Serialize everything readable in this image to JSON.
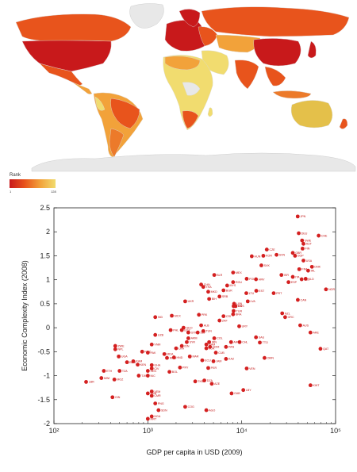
{
  "legend": {
    "title": "Rank",
    "min": "1",
    "max": "128"
  },
  "colors": {
    "marker": "#d42020",
    "label": "#c01010",
    "map_ocean": "#ffffff",
    "map_land_missing": "#e8e8e8"
  },
  "chart_data": {
    "type": "scatter",
    "xlabel": "GDP per capita in USD (2009)",
    "ylabel": "Economic Complexity Index (2008)",
    "xscale": "log",
    "xlim": [
      100,
      100000
    ],
    "ylim": [
      -2,
      2.5
    ],
    "x_tick_labels": [
      "10²",
      "10³",
      "10⁴",
      "10⁵"
    ],
    "y_ticks": [
      -2,
      -1.5,
      -1,
      -0.5,
      0,
      0.5,
      1,
      1.5,
      2,
      2.5
    ],
    "y_tick_labels": [
      "-2",
      "-1.5",
      "-1",
      "-0.5",
      "0",
      "0.5",
      "1",
      "1.5",
      "2",
      "2.5"
    ],
    "grid": false,
    "points": [
      {
        "label": "JPN",
        "x": 39500,
        "y": 2.32
      },
      {
        "label": "DEU",
        "x": 40500,
        "y": 1.97
      },
      {
        "label": "CHE",
        "x": 66000,
        "y": 1.92
      },
      {
        "label": "SWE",
        "x": 44000,
        "y": 1.82
      },
      {
        "label": "AUT",
        "x": 45500,
        "y": 1.75
      },
      {
        "label": "FIN",
        "x": 44500,
        "y": 1.65
      },
      {
        "label": "GBR",
        "x": 35000,
        "y": 1.56
      },
      {
        "label": "SGP",
        "x": 37000,
        "y": 1.5
      },
      {
        "label": "USA",
        "x": 45500,
        "y": 1.4
      },
      {
        "label": "DNK",
        "x": 56000,
        "y": 1.27
      },
      {
        "label": "CZE",
        "x": 18500,
        "y": 1.63
      },
      {
        "label": "KOR",
        "x": 17000,
        "y": 1.5
      },
      {
        "label": "SVN",
        "x": 23500,
        "y": 1.52
      },
      {
        "label": "HUN",
        "x": 12800,
        "y": 1.49
      },
      {
        "label": "FRA",
        "x": 41000,
        "y": 1.22
      },
      {
        "label": "ISR",
        "x": 26500,
        "y": 1.1
      },
      {
        "label": "IRL",
        "x": 51000,
        "y": 1.19
      },
      {
        "label": "NLD",
        "x": 48000,
        "y": 1.02
      },
      {
        "label": "BEL",
        "x": 43500,
        "y": 1.01
      },
      {
        "label": "ITA",
        "x": 35000,
        "y": 1.06
      },
      {
        "label": "ESP",
        "x": 31500,
        "y": 0.95
      },
      {
        "label": "CAN",
        "x": 39600,
        "y": 0.58
      },
      {
        "label": "NOR",
        "x": 79000,
        "y": 0.8
      },
      {
        "label": "MEX",
        "x": 8100,
        "y": 1.15
      },
      {
        "label": "BLR",
        "x": 5100,
        "y": 1.1
      },
      {
        "label": "POL",
        "x": 11300,
        "y": 1.02
      },
      {
        "label": "HRV",
        "x": 14200,
        "y": 1.01
      },
      {
        "label": "SVK",
        "x": 16200,
        "y": 1.3
      },
      {
        "label": "EST",
        "x": 14300,
        "y": 0.77
      },
      {
        "label": "LTU",
        "x": 11200,
        "y": 0.72
      },
      {
        "label": "PRT",
        "x": 21900,
        "y": 0.72
      },
      {
        "label": "NZL",
        "x": 27000,
        "y": 0.3
      },
      {
        "label": "GRC",
        "x": 29000,
        "y": 0.22
      },
      {
        "label": "AUS",
        "x": 42000,
        "y": 0.05
      },
      {
        "label": "ARE",
        "x": 54000,
        "y": -0.1
      },
      {
        "label": "QAT",
        "x": 69000,
        "y": -0.44
      },
      {
        "label": "KWT",
        "x": 54000,
        "y": -1.2
      },
      {
        "label": "SAU",
        "x": 14200,
        "y": -0.2
      },
      {
        "label": "TTO",
        "x": 15600,
        "y": -0.31
      },
      {
        "label": "OMN",
        "x": 17500,
        "y": -0.63
      },
      {
        "label": "VEN",
        "x": 11300,
        "y": -0.85
      },
      {
        "label": "LBY",
        "x": 10400,
        "y": -1.3
      },
      {
        "label": "GAB",
        "x": 7800,
        "y": -1.37
      },
      {
        "label": "AZE",
        "x": 4800,
        "y": -1.17
      },
      {
        "label": "TKM",
        "x": 3200,
        "y": -1.12
      },
      {
        "label": "DZA",
        "x": 4000,
        "y": -1.1
      },
      {
        "label": "AGO",
        "x": 4200,
        "y": -1.72
      },
      {
        "label": "COG",
        "x": 2500,
        "y": -1.65
      },
      {
        "label": "NGA",
        "x": 1100,
        "y": -1.85
      },
      {
        "label": "GIN",
        "x": 420,
        "y": -1.45
      },
      {
        "label": "SDN",
        "x": 1300,
        "y": -1.72
      },
      {
        "label": "PNG",
        "x": 1200,
        "y": -1.58
      },
      {
        "label": "CMR",
        "x": 1100,
        "y": -1.42
      },
      {
        "label": "ZMB",
        "x": 1000,
        "y": -1.37
      },
      {
        "label": "YEM",
        "x": 1100,
        "y": -1.33
      },
      {
        "label": "LBR",
        "x": 220,
        "y": -1.13
      },
      {
        "label": "ETH",
        "x": 340,
        "y": -0.9
      },
      {
        "label": "MOZ",
        "x": 440,
        "y": -1.08
      },
      {
        "label": "MWI",
        "x": 320,
        "y": -1.05
      },
      {
        "label": "TZA",
        "x": 500,
        "y": -0.9
      },
      {
        "label": "SEN",
        "x": 1000,
        "y": -0.9
      },
      {
        "label": "CIV",
        "x": 1100,
        "y": -0.85
      },
      {
        "label": "BOL",
        "x": 1700,
        "y": -0.92
      },
      {
        "label": "NIC",
        "x": 1000,
        "y": -1.0
      },
      {
        "label": "TJK",
        "x": 800,
        "y": -1.0
      },
      {
        "label": "BGD",
        "x": 600,
        "y": -0.72
      },
      {
        "label": "KEN",
        "x": 780,
        "y": -0.77
      },
      {
        "label": "GHA",
        "x": 1100,
        "y": -0.78
      },
      {
        "label": "UGA",
        "x": 490,
        "y": -0.6
      },
      {
        "label": "ZWE",
        "x": 450,
        "y": -0.38
      },
      {
        "label": "KGZ",
        "x": 870,
        "y": -0.5
      },
      {
        "label": "VNM",
        "x": 1100,
        "y": -0.35
      },
      {
        "label": "PAK",
        "x": 1000,
        "y": -0.52
      },
      {
        "label": "NPL",
        "x": 450,
        "y": -0.45
      },
      {
        "label": "KHM",
        "x": 700,
        "y": -0.7
      },
      {
        "label": "MNG",
        "x": 1600,
        "y": -0.63
      },
      {
        "label": "HND",
        "x": 1900,
        "y": -0.62
      },
      {
        "label": "LKA",
        "x": 2000,
        "y": -0.43
      },
      {
        "label": "IDN",
        "x": 2300,
        "y": -0.38
      },
      {
        "label": "PHL",
        "x": 1750,
        "y": -0.05
      },
      {
        "label": "IND",
        "x": 1200,
        "y": 0.22
      },
      {
        "label": "MDA",
        "x": 1500,
        "y": -0.55
      },
      {
        "label": "UKR",
        "x": 2500,
        "y": 0.55
      },
      {
        "label": "MCX",
        "x": 1800,
        "y": 0.25
      },
      {
        "label": "GTM",
        "x": 2700,
        "y": -0.1
      },
      {
        "label": "SLV",
        "x": 3400,
        "y": -0.1
      },
      {
        "label": "EGY",
        "x": 2300,
        "y": -0.05
      },
      {
        "label": "SYR",
        "x": 2600,
        "y": -0.3
      },
      {
        "label": "MAR",
        "x": 2800,
        "y": -0.6
      },
      {
        "label": "JOR",
        "x": 4200,
        "y": -0.43
      },
      {
        "label": "TUN",
        "x": 3900,
        "y": -0.07
      },
      {
        "label": "ALB",
        "x": 3700,
        "y": 0.05
      },
      {
        "label": "GEO",
        "x": 2400,
        "y": 0.0
      },
      {
        "label": "ARM",
        "x": 2700,
        "y": -0.22
      },
      {
        "label": "ECU",
        "x": 3800,
        "y": -0.68
      },
      {
        "label": "PRY",
        "x": 2200,
        "y": -0.83
      },
      {
        "label": "PER",
        "x": 4400,
        "y": -0.84
      },
      {
        "label": "CHL",
        "x": 9500,
        "y": -0.3
      },
      {
        "label": "IRN",
        "x": 4500,
        "y": -0.3
      },
      {
        "label": "KAZ",
        "x": 6800,
        "y": -0.65
      },
      {
        "label": "CUB",
        "x": 5300,
        "y": -0.52
      },
      {
        "label": "JAM",
        "x": 5000,
        "y": -0.7
      },
      {
        "label": "PAN",
        "x": 6800,
        "y": -0.4
      },
      {
        "label": "DOM",
        "x": 4600,
        "y": -0.4
      },
      {
        "label": "CRI",
        "x": 6400,
        "y": 0.24
      },
      {
        "label": "URY",
        "x": 9400,
        "y": 0.03
      },
      {
        "label": "ZAF",
        "x": 5800,
        "y": 0.15
      },
      {
        "label": "BRA",
        "x": 8100,
        "y": 0.28
      },
      {
        "label": "THA",
        "x": 3900,
        "y": 0.85
      },
      {
        "label": "CHN",
        "x": 3700,
        "y": 0.9
      },
      {
        "label": "TUR",
        "x": 8200,
        "y": 0.45
      },
      {
        "label": "ARG",
        "x": 7700,
        "y": -0.3
      },
      {
        "label": "COL",
        "x": 5100,
        "y": -0.22
      },
      {
        "label": "BGR",
        "x": 6400,
        "y": 0.78
      },
      {
        "label": "ROU",
        "x": 8100,
        "y": 0.95
      },
      {
        "label": "SRB",
        "x": 5800,
        "y": 0.65
      },
      {
        "label": "BIH",
        "x": 4500,
        "y": 0.6
      },
      {
        "label": "MKD",
        "x": 4400,
        "y": 0.75
      },
      {
        "label": "MYS",
        "x": 7000,
        "y": 0.88
      },
      {
        "label": "LVA",
        "x": 11600,
        "y": 0.55
      },
      {
        "label": "RUS",
        "x": 8600,
        "y": 0.45
      },
      {
        "label": "LBN",
        "x": 8300,
        "y": 0.5
      },
      {
        "label": "TUR2",
        "x": 8200,
        "y": 0.35
      },
      {
        "label": "PRK",
        "x": 3500,
        "y": 0.27
      },
      {
        "label": "UZB",
        "x": 1200,
        "y": -0.15
      },
      {
        "label": "MRT",
        "x": 1000,
        "y": -1.9
      },
      {
        "label": "NAM",
        "x": 4200,
        "y": -0.35
      }
    ]
  }
}
